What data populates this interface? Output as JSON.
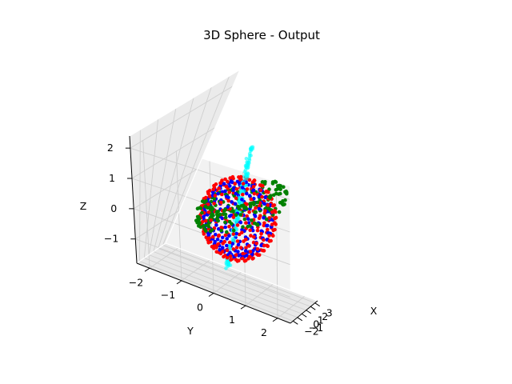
{
  "chart_data": {
    "type": "scatter",
    "projection": "3d",
    "title": "3D Sphere - Output",
    "xlabel": "X",
    "ylabel": "Y",
    "zlabel": "Z",
    "grid": true,
    "xlim": [
      -2.6,
      3.6
    ],
    "ylim": [
      -2.4,
      2.4
    ],
    "zlim": [
      -1.8,
      2.4
    ],
    "xticks": [
      -2,
      -1,
      0,
      1,
      2,
      3
    ],
    "yticks": [
      -2,
      -1,
      0,
      1,
      2
    ],
    "zticks": [
      -1,
      0,
      1,
      2
    ],
    "series": [
      {
        "color": "#0000ff",
        "shape": "sphere",
        "center": [
          0,
          0,
          0
        ],
        "radius": 1,
        "n": 200
      },
      {
        "color": "#ff0000",
        "shape": "sphere",
        "center": [
          0,
          0,
          0
        ],
        "radius": 1.1,
        "n": 260
      },
      {
        "color": "#008000",
        "shape": "torus",
        "center": [
          0,
          0,
          0.3
        ],
        "major_radius": 1.7,
        "minor_radius": 0.35,
        "n": 220
      },
      {
        "color": "#00ffff",
        "shape": "column",
        "center": [
          0.1,
          -0.05,
          0
        ],
        "z_range": [
          -1.4,
          2.0
        ],
        "n": 160
      }
    ]
  }
}
